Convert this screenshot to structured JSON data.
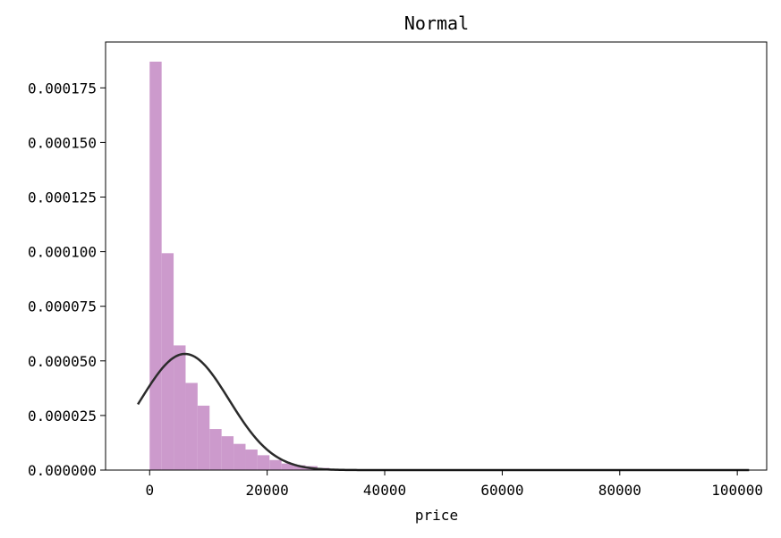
{
  "chart_data": {
    "type": "bar",
    "title": "Normal",
    "xlabel": "price",
    "ylabel": "",
    "xlim": [
      -7500,
      105000
    ],
    "ylim": [
      0,
      0.000196
    ],
    "x_ticks": [
      0,
      20000,
      40000,
      60000,
      80000,
      100000
    ],
    "y_ticks": [
      0,
      2.5e-05,
      5e-05,
      7.5e-05,
      0.0001,
      0.000125,
      0.00015,
      0.000175
    ],
    "y_tick_labels": [
      "0.000000",
      "0.000025",
      "0.000050",
      "0.000075",
      "0.000100",
      "0.000125",
      "0.000150",
      "0.000175"
    ],
    "grid": false,
    "bin_width": 2040,
    "bin_start": 0,
    "histogram_density": [
      0.000187,
      9.93e-05,
      5.71e-05,
      3.99e-05,
      2.95e-05,
      1.88e-05,
      1.55e-05,
      1.2e-05,
      9.4e-06,
      6.8e-06,
      4.6e-06,
      3e-06,
      2.2e-06,
      1.8e-06,
      1e-06,
      6e-07,
      4e-07,
      3e-07,
      2e-07,
      2e-07,
      1e-07,
      1e-07,
      1e-07,
      1e-07,
      1e-07,
      1e-07,
      1e-07,
      1e-07,
      1e-07,
      1e-07,
      1e-07,
      1e-07,
      1e-07,
      1e-07,
      1e-07,
      1e-07,
      1e-07,
      1e-07,
      1e-07,
      1e-07,
      1e-07,
      1e-07,
      1e-07,
      1e-07,
      1e-07,
      1e-07,
      1e-07,
      1e-07,
      1e-07,
      1e-07
    ],
    "bar_color": "#cc9acc",
    "fit_curve": {
      "distribution": "normal",
      "mean": 6000,
      "std": 7500,
      "x_range": [
        -2000,
        102000
      ],
      "color": "#2b2b2b"
    }
  }
}
